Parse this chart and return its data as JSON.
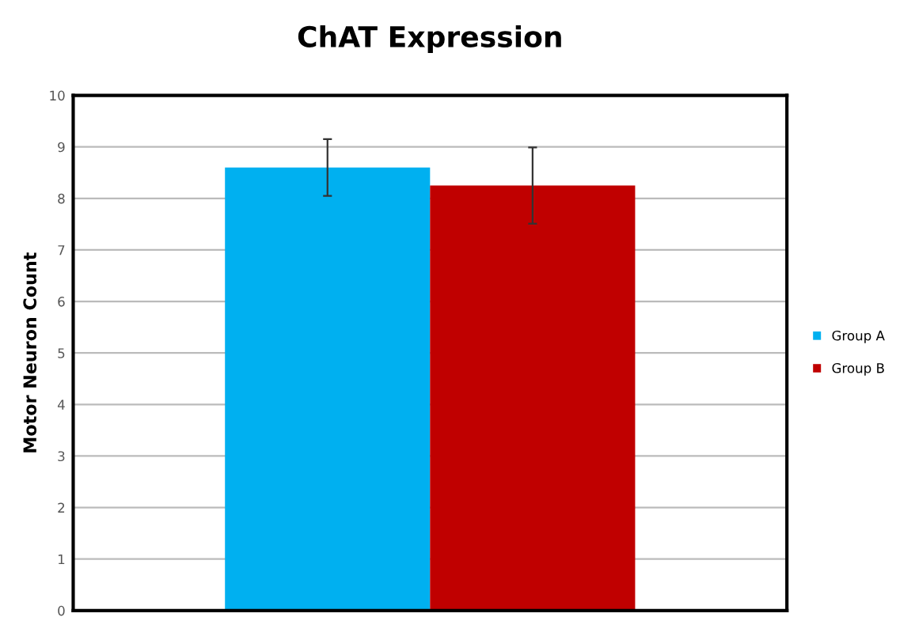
{
  "chart_data": {
    "type": "bar",
    "title": "ChAT Expression",
    "ylabel": "Motor Neuron Count",
    "categories": [
      null
    ],
    "series": [
      {
        "name": "Group A",
        "color": "#00b0f0",
        "values": [
          8.6
        ],
        "errors": [
          0.55
        ]
      },
      {
        "name": "Group B",
        "color": "#c00000",
        "values": [
          8.25
        ],
        "errors": [
          0.74
        ]
      }
    ],
    "ylim": [
      0,
      10
    ],
    "yticks": [
      0,
      1,
      2,
      3,
      4,
      5,
      6,
      7,
      8,
      9,
      10
    ],
    "grid": "y",
    "legend": "right"
  }
}
